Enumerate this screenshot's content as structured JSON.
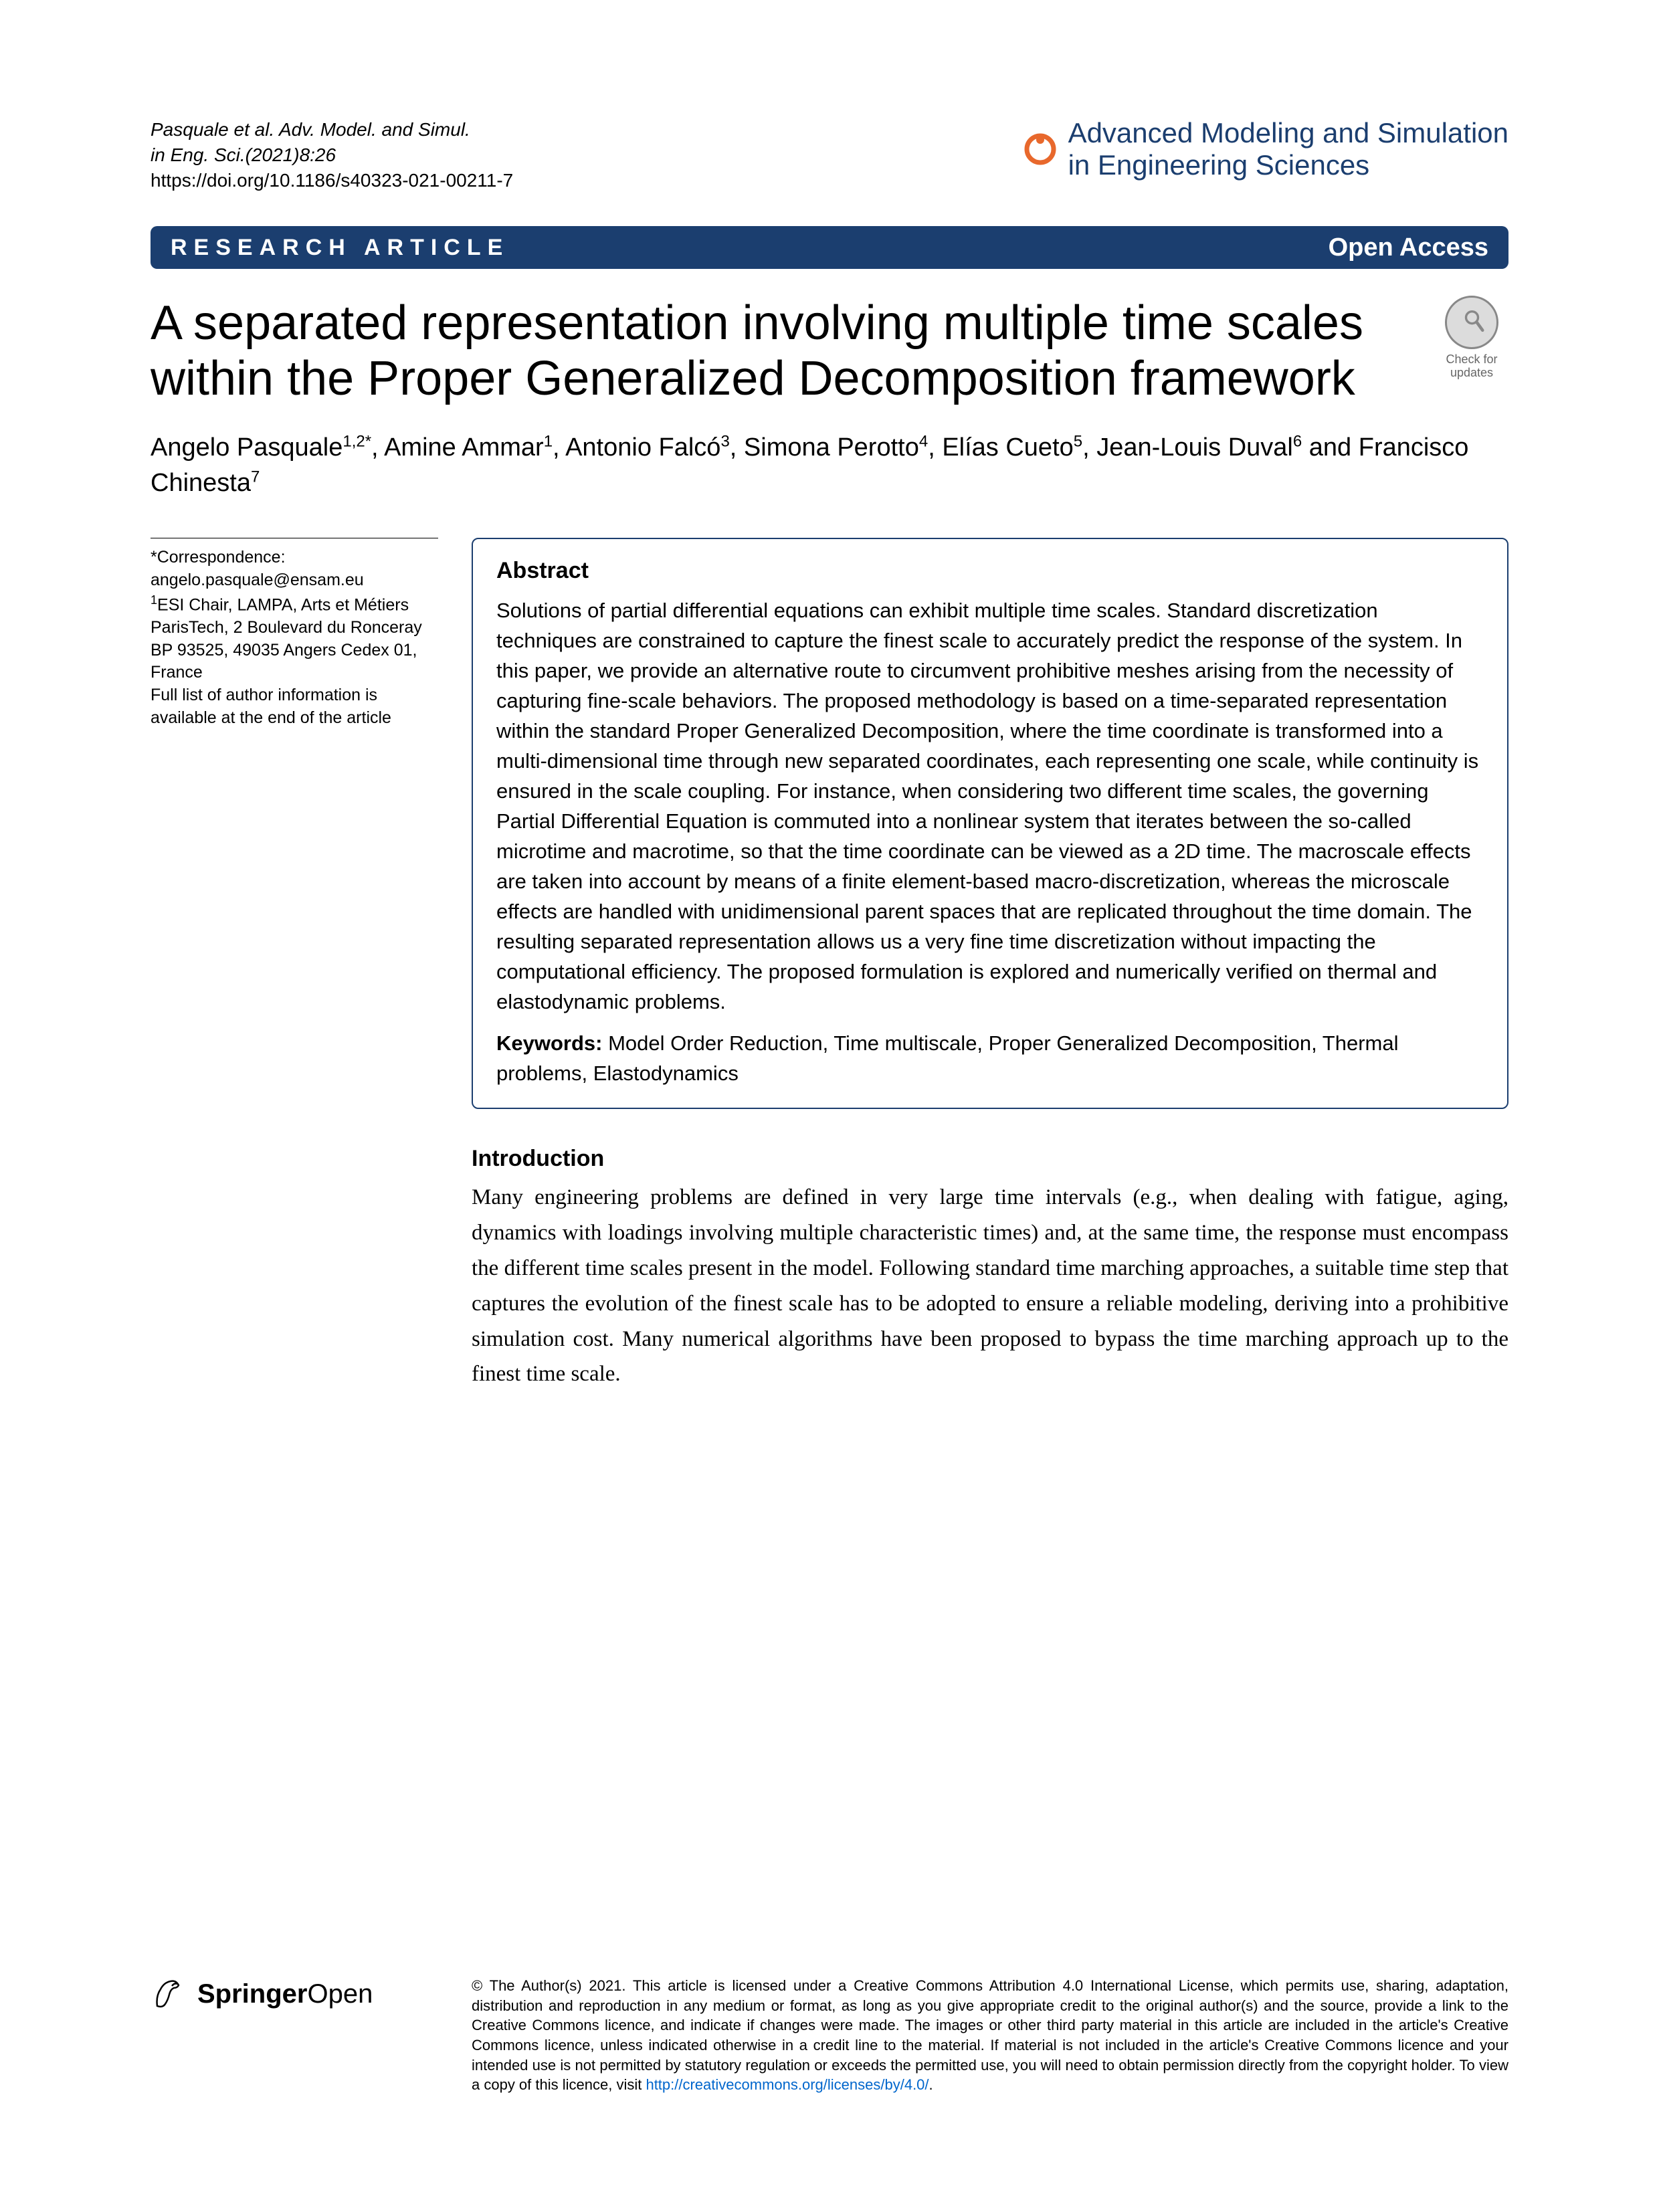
{
  "citation": {
    "line1": "Pasquale et al. Adv. Model. and Simul.",
    "line2": "in Eng. Sci.(2021)8:26",
    "doi": "https://doi.org/10.1186/s40323-021-00211-7"
  },
  "journal": {
    "name_line1": "Advanced Modeling and Simulation",
    "name_line2": "in Engineering Sciences",
    "icon_color": "#e8682c"
  },
  "category_bar": {
    "label": "RESEARCH ARTICLE",
    "open_access": "Open Access",
    "background": "#1b3e6f",
    "text_color": "#ffffff"
  },
  "title": "A separated representation involving multiple time scales within the Proper Generalized Decomposition framework",
  "check_updates": {
    "line1": "Check for",
    "line2": "updates"
  },
  "authors_html": "Angelo Pasquale<sup>1,2*</sup>, Amine Ammar<sup>1</sup>, Antonio Falcó<sup>3</sup>, Simona Perotto<sup>4</sup>, Elías Cueto<sup>5</sup>, Jean-Louis Duval<sup>6</sup> and Francisco Chinesta<sup>7</sup>",
  "correspondence": {
    "star": "*Correspondence:",
    "email": "angelo.pasquale@ensam.eu",
    "affil": "<sup>1</sup>ESI Chair, LAMPA, Arts et Métiers ParisTech, 2 Boulevard du Ronceray BP 93525, 49035 Angers Cedex 01, France",
    "note": "Full list of author information is available at the end of the article"
  },
  "abstract": {
    "heading": "Abstract",
    "text": "Solutions of partial differential equations can exhibit multiple time scales. Standard discretization techniques are constrained to capture the finest scale to accurately predict the response of the system. In this paper, we provide an alternative route to circumvent prohibitive meshes arising from the necessity of capturing fine-scale behaviors. The proposed methodology is based on a time-separated representation within the standard Proper Generalized Decomposition, where the time coordinate is transformed into a multi-dimensional time through new separated coordinates, each representing one scale, while continuity is ensured in the scale coupling. For instance, when considering two different time scales, the governing Partial Differential Equation is commuted into a nonlinear system that iterates between the so-called microtime and macrotime, so that the time coordinate can be viewed as a 2D time. The macroscale effects are taken into account by means of a finite element-based macro-discretization, whereas the microscale effects are handled with unidimensional parent spaces that are replicated throughout the time domain. The resulting separated representation allows us a very fine time discretization without impacting the computational efficiency. The proposed formulation is explored and numerically verified on thermal and elastodynamic problems.",
    "keywords_label": "Keywords:",
    "keywords": "Model Order Reduction, Time multiscale, Proper Generalized Decomposition, Thermal problems, Elastodynamics"
  },
  "introduction": {
    "heading": "Introduction",
    "text": "Many engineering problems are defined in very large time intervals (e.g., when dealing with fatigue, aging, dynamics with loadings involving multiple characteristic times) and, at the same time, the response must encompass the different time scales present in the model. Following standard time marching approaches, a suitable time step that captures the evolution of the finest scale has to be adopted to ensure a reliable modeling, deriving into a prohibitive simulation cost. Many numerical algorithms have been proposed to bypass the time marching approach up to the finest time scale."
  },
  "footer": {
    "springer_bold": "Springer",
    "springer_light": "Open",
    "license": "© The Author(s) 2021. This article is licensed under a Creative Commons Attribution 4.0 International License, which permits use, sharing, adaptation, distribution and reproduction in any medium or format, as long as you give appropriate credit to the original author(s) and the source, provide a link to the Creative Commons licence, and indicate if changes were made. The images or other third party material in this article are included in the article's Creative Commons licence, unless indicated otherwise in a credit line to the material. If material is not included in the article's Creative Commons licence and your intended use is not permitted by statutory regulation or exceeds the permitted use, you will need to obtain permission directly from the copyright holder. To view a copy of this licence, visit ",
    "license_link_text": "http://creativecommons.org/licenses/by/4.0/",
    "license_link_href": "http://creativecommons.org/licenses/by/4.0/",
    "license_end": "."
  },
  "colors": {
    "primary": "#1b3e6f",
    "link": "#0066cc",
    "orange": "#e8682c"
  }
}
